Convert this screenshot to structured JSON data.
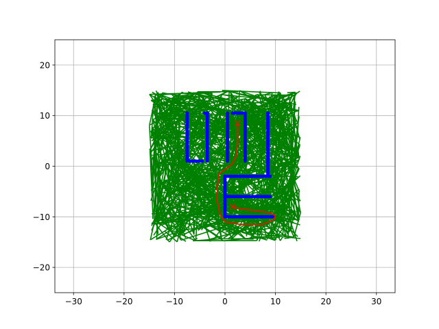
{
  "chart_data": {
    "type": "scatter",
    "title": "",
    "xlabel": "",
    "ylabel": "",
    "xlim": [
      -33.7,
      33.7
    ],
    "ylim": [
      -25,
      25
    ],
    "grid": true,
    "x_ticks": [
      -30,
      -20,
      -10,
      0,
      10,
      20,
      30
    ],
    "y_ticks": [
      -20,
      -10,
      0,
      10,
      20
    ],
    "x_tick_labels": [
      "−30",
      "−20",
      "−10",
      "0",
      "10",
      "20",
      "30"
    ],
    "y_tick_labels": [
      "−20",
      "−10",
      "0",
      "10",
      "20"
    ],
    "tree": {
      "color": "#008000",
      "region": {
        "xmin": -15,
        "xmax": 15,
        "ymin": -15,
        "ymax": 15
      }
    },
    "obstacles": {
      "color": "#0000ff",
      "segments": [
        {
          "x": [
            -7.5,
            -7.5
          ],
          "y": [
            10.5,
            1.0
          ]
        },
        {
          "x": [
            -7.0,
            -4.5
          ],
          "y": [
            1.0,
            1.0
          ]
        },
        {
          "x": [
            -3.5,
            -3.5
          ],
          "y": [
            10.5,
            1.0
          ]
        },
        {
          "x": [
            0.5,
            0.5
          ],
          "y": [
            10.5,
            1.0
          ]
        },
        {
          "x": [
            -4.0,
            -4.0
          ],
          "y": [
            10.5,
            10.5
          ]
        },
        {
          "x": [
            4.0,
            4.0
          ],
          "y": [
            10.5,
            1.0
          ]
        },
        {
          "x": [
            1.5,
            3.5
          ],
          "y": [
            10.5,
            10.5
          ]
        },
        {
          "x": [
            8.5,
            8.5
          ],
          "y": [
            10.5,
            -2.0
          ]
        },
        {
          "x": [
            0.0,
            9.0
          ],
          "y": [
            -2.0,
            -2.0
          ]
        },
        {
          "x": [
            0.0,
            0.0
          ],
          "y": [
            -2.0,
            -10.0
          ]
        },
        {
          "x": [
            0.5,
            9.0
          ],
          "y": [
            -6.0,
            -6.0
          ]
        },
        {
          "x": [
            0.0,
            9.5
          ],
          "y": [
            -10.0,
            -10.0
          ]
        }
      ]
    },
    "path": {
      "color": "#cc2200",
      "x": [
        2.5,
        2.5,
        2.2,
        1.5,
        0.2,
        -1.2,
        -1.5,
        -1.5,
        -1.0,
        0.0,
        3.0,
        7.5,
        9.8,
        10.0,
        9.0,
        6.0,
        3.0,
        1.5
      ],
      "y": [
        8.5,
        5.0,
        2.0,
        0.5,
        -0.5,
        -1.5,
        -4.0,
        -7.0,
        -9.5,
        -11.0,
        -11.5,
        -11.5,
        -10.5,
        -9.8,
        -9.2,
        -8.8,
        -8.4,
        -8.0
      ]
    },
    "start": {
      "x": 2.5,
      "y": 8.5
    },
    "goal": {
      "x": 1.5,
      "y": -8.0
    }
  }
}
